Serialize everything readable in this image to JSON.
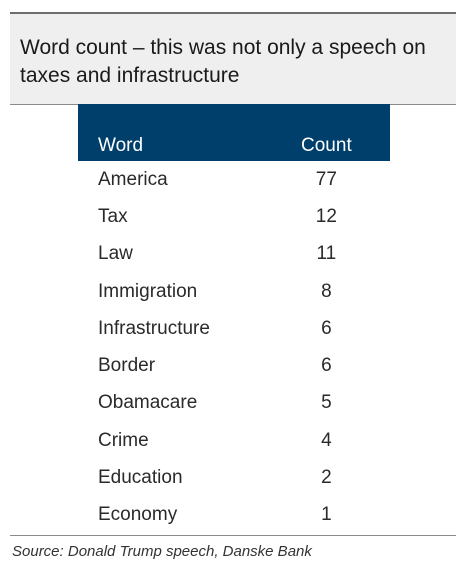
{
  "header": {
    "title": "Word count – this was not only a speech on taxes and infrastructure"
  },
  "chart_data": {
    "type": "table",
    "title": "Word count – this was not only a speech on taxes and infrastructure",
    "columns": [
      "Word",
      "Count"
    ],
    "rows": [
      {
        "word": "America",
        "count": 77
      },
      {
        "word": "Tax",
        "count": 12
      },
      {
        "word": "Law",
        "count": 11
      },
      {
        "word": "Immigration",
        "count": 8
      },
      {
        "word": "Infrastructure",
        "count": 6
      },
      {
        "word": "Border",
        "count": 6
      },
      {
        "word": "Obamacare",
        "count": 5
      },
      {
        "word": "Crime",
        "count": 4
      },
      {
        "word": "Education",
        "count": 2
      },
      {
        "word": "Economy",
        "count": 1
      }
    ]
  },
  "footer": {
    "source": "Source: Donald Trump speech, Danske Bank"
  },
  "colors": {
    "header_bg": "#003f6b",
    "title_bg": "#efefef",
    "text": "#2a2a2a"
  }
}
